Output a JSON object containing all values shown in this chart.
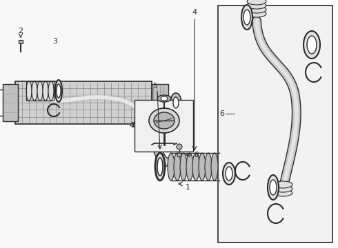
{
  "bg_color": "#f5f5f5",
  "line_color": "#2a2a2a",
  "white": "#ffffff",
  "light_gray": "#e0e0e0",
  "mid_gray": "#b0b0b0",
  "panel_bg": "#f0f0f0",
  "hatch_color": "#aaaaaa"
}
